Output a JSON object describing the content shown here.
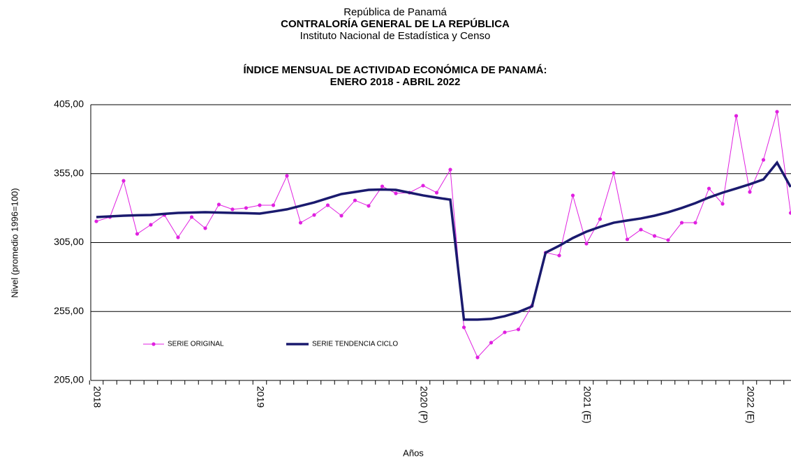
{
  "page": {
    "header": [
      "República de Panamá",
      "CONTRALORÍA GENERAL DE LA REPÚBLICA",
      "Instituto Nacional de Estadística y Censo"
    ]
  },
  "chart_data": {
    "type": "line",
    "title": [
      "ÍNDICE MENSUAL DE ACTIVIDAD ECONÓMICA DE PANAMÁ:",
      "ENERO 2018 - ABRIL 2022"
    ],
    "y_label": "Nivel (promedio 1996=100)",
    "x_label": "Años",
    "categories": [
      "2018",
      null,
      null,
      null,
      null,
      null,
      null,
      null,
      null,
      null,
      null,
      null,
      "2019",
      null,
      null,
      null,
      null,
      null,
      null,
      null,
      null,
      null,
      null,
      null,
      "2020 (P)",
      null,
      null,
      null,
      null,
      null,
      null,
      null,
      null,
      null,
      null,
      null,
      "2021 (E)",
      null,
      null,
      null,
      null,
      null,
      null,
      null,
      null,
      null,
      null,
      null,
      "2022 (E)",
      null,
      null,
      null
    ],
    "series": [
      {
        "name": "SERIE ORIGINAL",
        "color": "#e020e0",
        "values": [
          320.4,
          323.5,
          349.8,
          311.3,
          317.9,
          325,
          308.8,
          323.5,
          315.4,
          332.6,
          329.1,
          330.1,
          332.1,
          332.1,
          353.4,
          319.4,
          325,
          332.1,
          324.5,
          335.6,
          331.6,
          345.8,
          340.7,
          341.2,
          346.3,
          341.2,
          357.9,
          243.5,
          221.7,
          232.4,
          239.9,
          242,
          259.2,
          297.7,
          295.6,
          339.2,
          304.2,
          322,
          355.4,
          307.3,
          314.4,
          309.8,
          306.8,
          319.4,
          319.4,
          344.2,
          333.1,
          396.9,
          341.7,
          365,
          399.9,
          326.5
        ]
      },
      {
        "name": "SERIE TENDENCIA CICLO",
        "color": "#1a1a6e",
        "values": [
          323.5,
          324,
          324.5,
          324.8,
          325,
          325.8,
          326.5,
          326.8,
          327,
          326.8,
          326.5,
          326.3,
          326,
          327.5,
          329.1,
          331.6,
          334.1,
          337.2,
          340.2,
          341.7,
          343.2,
          343.5,
          343.2,
          341.2,
          339.2,
          337.6,
          336.1,
          249.1,
          249.1,
          249.6,
          251.6,
          254.6,
          258.7,
          297.7,
          302.7,
          308.3,
          312.9,
          316.4,
          319.4,
          321,
          322.5,
          324.5,
          327,
          330.1,
          333.6,
          337.7,
          341.2,
          344.2,
          347.3,
          350.8,
          363,
          345.3
        ]
      }
    ],
    "ylim": [
      205,
      405
    ],
    "yticks": [
      {
        "value": 205,
        "label": "205,00"
      },
      {
        "value": 255,
        "label": "255,00"
      },
      {
        "value": 305,
        "label": "305,00"
      },
      {
        "value": 355,
        "label": "355,00"
      },
      {
        "value": 405,
        "label": "405,00"
      }
    ],
    "grid": true
  }
}
